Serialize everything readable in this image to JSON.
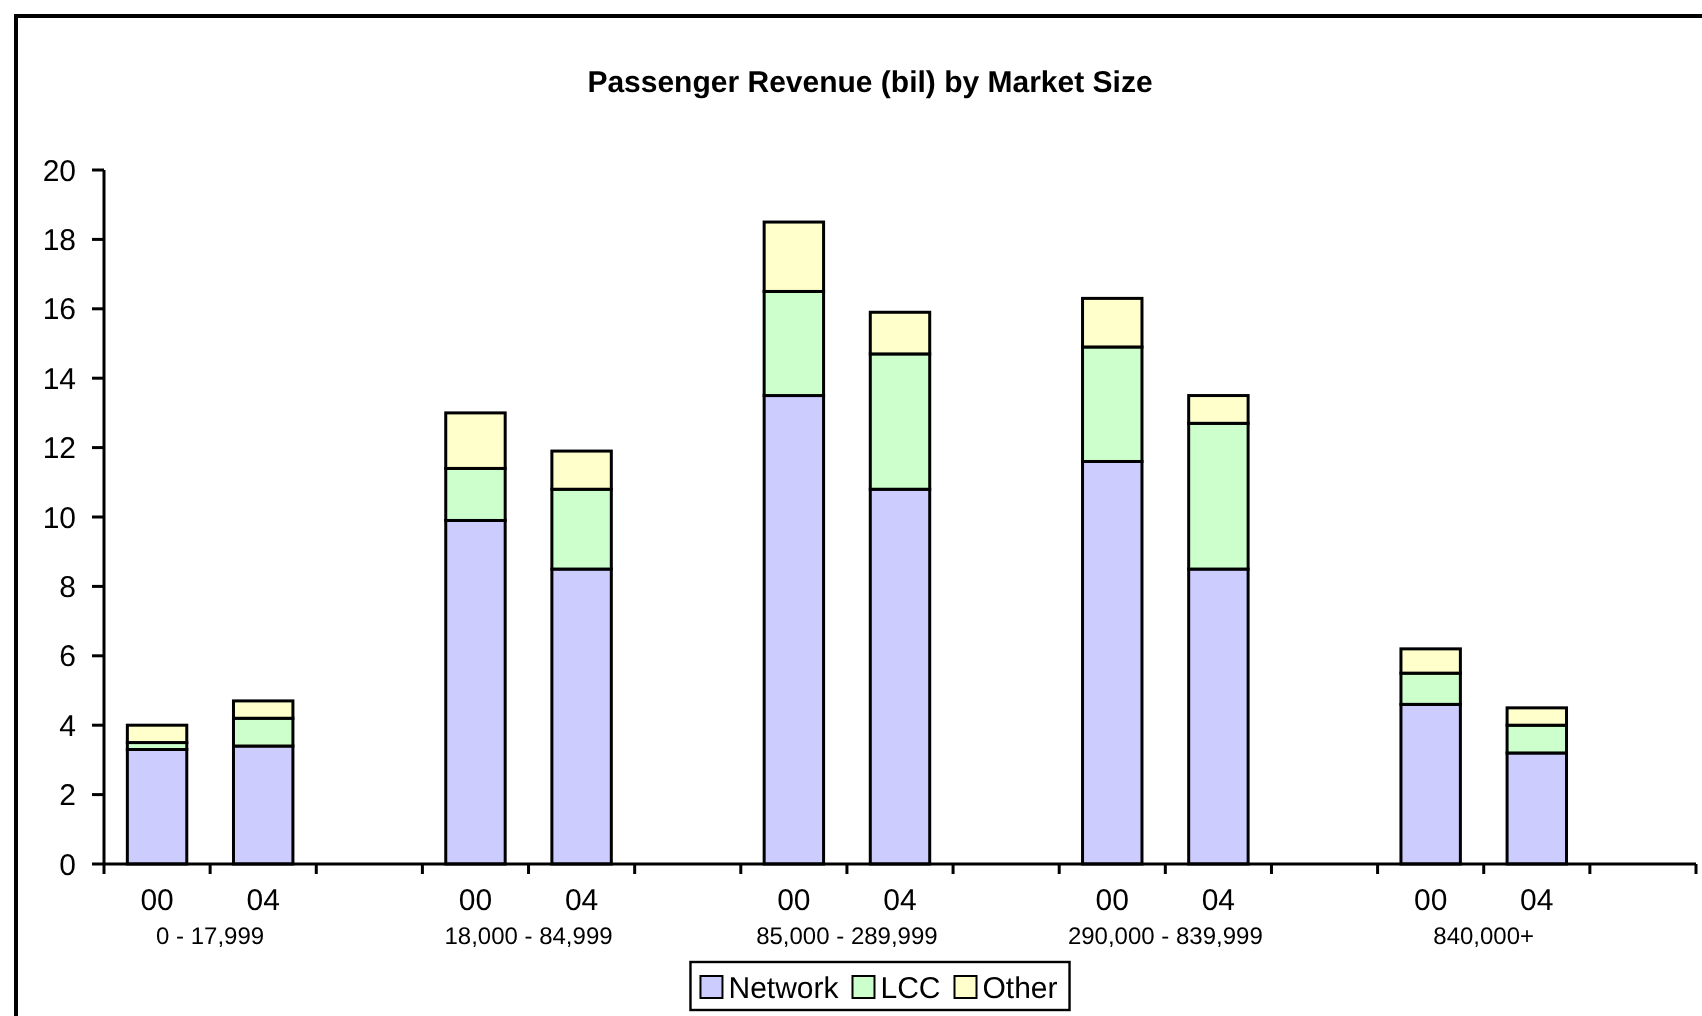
{
  "chart_data": {
    "type": "bar",
    "title": "Passenger Revenue (bil) by Market Size",
    "categories": [
      "00",
      "04",
      null,
      "00",
      "04",
      null,
      "00",
      "04",
      null,
      "00",
      "04",
      null,
      "00",
      "04",
      null
    ],
    "series": [
      {
        "name": "Network",
        "color": "#ccccff",
        "values": [
          3.3,
          3.4,
          null,
          9.9,
          8.5,
          null,
          13.5,
          10.8,
          null,
          11.6,
          8.5,
          null,
          4.6,
          3.2,
          null
        ]
      },
      {
        "name": "LCC",
        "color": "#ccffcc",
        "values": [
          0.2,
          0.8,
          null,
          1.5,
          2.3,
          null,
          3.0,
          3.9,
          null,
          3.3,
          4.2,
          null,
          0.9,
          0.8,
          null
        ]
      },
      {
        "name": "Other",
        "color": "#ffffcc",
        "values": [
          0.5,
          0.5,
          null,
          1.6,
          1.1,
          null,
          2.0,
          1.2,
          null,
          1.4,
          0.8,
          null,
          0.7,
          0.5,
          null
        ]
      }
    ],
    "stacked": true,
    "ylim": [
      0,
      20
    ],
    "yticks": [
      0,
      2,
      4,
      6,
      8,
      10,
      12,
      14,
      16,
      18,
      20
    ],
    "legend": "bottom",
    "annotations": [
      "0 - 17,999",
      "18,000 - 84,999",
      "85,000 - 289,999",
      "290,000 - 839,999",
      "840,000+"
    ]
  }
}
